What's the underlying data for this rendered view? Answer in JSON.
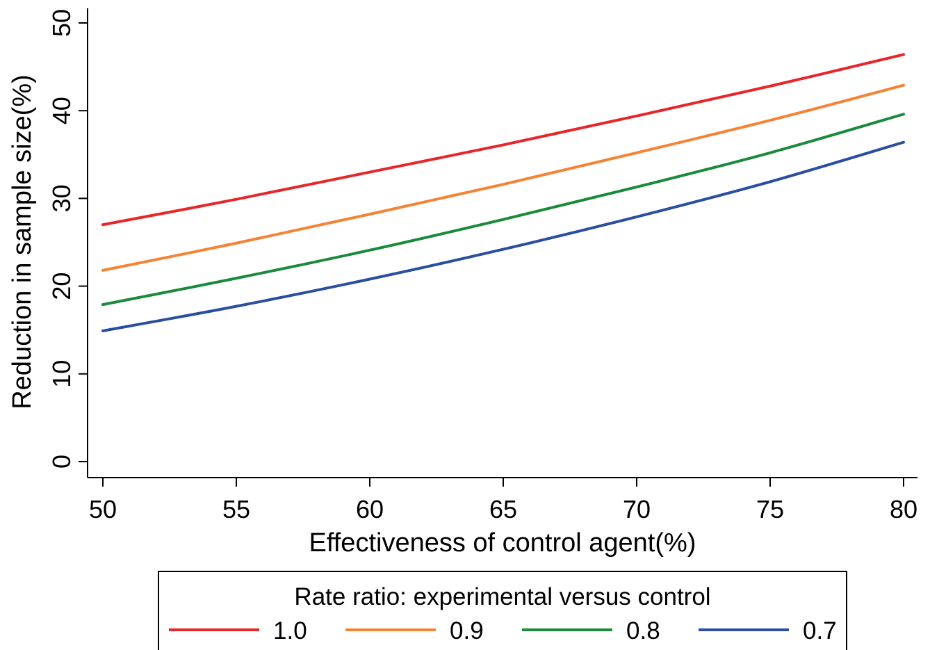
{
  "chart_data": {
    "type": "line",
    "xlabel": "Effectiveness of control agent(%)",
    "ylabel": "Reduction in sample size(%)",
    "xlim": [
      50,
      80
    ],
    "ylim": [
      0,
      50
    ],
    "x_ticks": [
      "50",
      "55",
      "60",
      "65",
      "70",
      "75",
      "80"
    ],
    "y_ticks": [
      "0",
      "10",
      "20",
      "30",
      "40",
      "50"
    ],
    "grid": false,
    "legend": {
      "title": "Rate ratio: experimental versus control",
      "position": "bottom"
    },
    "x": [
      50,
      55,
      60,
      65,
      70,
      75,
      80
    ],
    "series": [
      {
        "name": "1.0",
        "color": "#e8262a",
        "values": [
          27.0,
          29.9,
          33.0,
          36.1,
          39.4,
          42.8,
          46.4
        ]
      },
      {
        "name": "0.9",
        "color": "#f58333",
        "values": [
          21.8,
          24.9,
          28.2,
          31.6,
          35.2,
          38.9,
          42.9
        ]
      },
      {
        "name": "0.8",
        "color": "#1a8a3c",
        "values": [
          17.9,
          20.9,
          24.1,
          27.6,
          31.3,
          35.2,
          39.6
        ]
      },
      {
        "name": "0.7",
        "color": "#2a4ea0",
        "values": [
          14.9,
          17.7,
          20.8,
          24.2,
          27.9,
          31.9,
          36.4
        ]
      }
    ]
  }
}
